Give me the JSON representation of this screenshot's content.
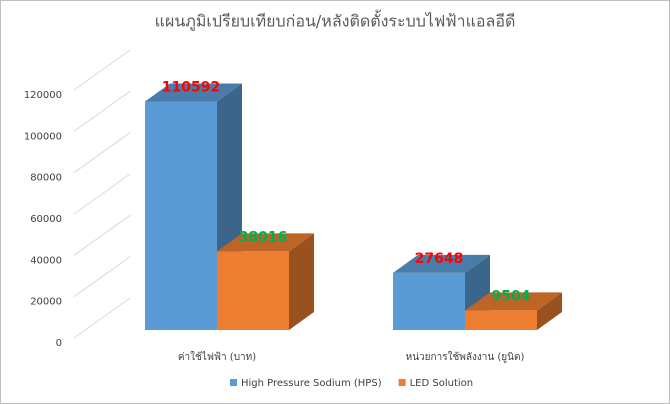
{
  "chart_data": {
    "type": "bar3d",
    "title": "แผนภูมิเปรียบเทียบก่อน/หลังติดตั้งระบบไฟฟ้าแอลอีดี",
    "categories": [
      "ค่าใช้ไฟฟ้า (บาท)",
      "หน่วยการใช้พลังงาน (ยูนิต)"
    ],
    "series": [
      {
        "name": "High Pressure Sodium (HPS)",
        "color": "#5b9bd5",
        "label_color": "#ff0000",
        "values": [
          110592,
          27648
        ]
      },
      {
        "name": "LED Solution",
        "color": "#ed7d31",
        "label_color": "#00b050",
        "values": [
          38016,
          9504
        ]
      }
    ],
    "ylim": [
      0,
      120000
    ],
    "yticks": [
      0,
      20000,
      40000,
      60000,
      80000,
      100000,
      120000
    ],
    "grid": true,
    "legend": "bottom"
  }
}
